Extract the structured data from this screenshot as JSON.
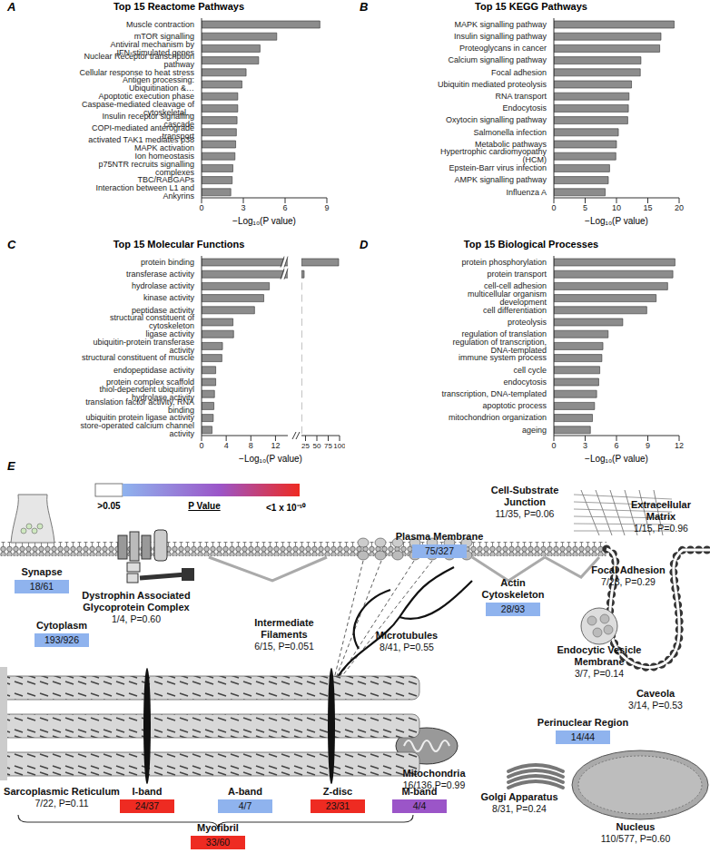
{
  "chart_data": [
    {
      "type": "bar",
      "panel": "A",
      "title": "Top 15 Reactome Pathways",
      "orientation": "horizontal",
      "color": "#8c8c8c",
      "categories": [
        "Muscle contraction",
        "mTOR signalling",
        "Antiviral mechanism by IFN-stimulated genes",
        "Nuclear Receptor transcription pathway",
        "Cellular response to heat stress",
        "Antigen processing: Ubiquitination &…",
        "Apoptotic execution  phase",
        "Caspase-mediated cleavage of cytoskeletal…",
        "Insulin receptor signalling cascade",
        "COPI-mediated anterograde transport",
        "activated TAK1 mediates p38 MAPK activation",
        "Ion homeostasis",
        "p75NTR recruits signalling complexes",
        "TBC/RABGAPs",
        "Interaction between L1 and Ankyrins"
      ],
      "values": [
        8.5,
        5.4,
        4.2,
        4.1,
        3.2,
        2.9,
        2.6,
        2.6,
        2.55,
        2.5,
        2.45,
        2.4,
        2.25,
        2.2,
        2.1
      ],
      "xlim": [
        0,
        9
      ],
      "xticks": [
        0,
        3,
        6,
        9
      ],
      "x_label": "−Log₁₀(P value)"
    },
    {
      "type": "bar",
      "panel": "B",
      "title": "Top 15 KEGG Pathways",
      "orientation": "horizontal",
      "color": "#8c8c8c",
      "categories": [
        "MAPK signalling pathway",
        "Insulin signalling pathway",
        "Proteoglycans in cancer",
        "Calcium signalling pathway",
        "Focal adhesion",
        "Ubiquitin mediated proteolysis",
        "RNA transport",
        "Endocytosis",
        "Oxytocin signalling pathway",
        "Salmonella infection",
        "Metabolic pathways",
        "Hypertrophic cardiomyopathy (HCM)",
        "Epstein-Barr virus infection",
        "AMPK signalling pathway",
        "Influenza A"
      ],
      "values": [
        19.2,
        17.1,
        16.9,
        13.9,
        13.8,
        12.4,
        12.0,
        11.9,
        11.8,
        10.3,
        10.0,
        9.9,
        8.9,
        8.7,
        8.2
      ],
      "xlim": [
        0,
        20
      ],
      "xticks": [
        0,
        5,
        10,
        15,
        20
      ],
      "x_label": "−Log₁₀(P value)"
    },
    {
      "type": "bar",
      "panel": "C",
      "title": "Top 15 Molecular Functions",
      "orientation": "horizontal",
      "color": "#8c8c8c",
      "categories": [
        "protein binding",
        "transferase activity",
        "hydrolase activity",
        "kinase activity",
        "peptidase activity",
        "structural constituent of cytoskeleton",
        "ligase activity",
        "ubiquitin-protein transferase activity",
        "structural constituent of muscle",
        "endopeptidase activity",
        "protein complex scaffold",
        "thiol-dependent ubiquitinyl hydrolase activity",
        "translation factor activity, RNA binding",
        "ubiquitin protein ligase activity",
        "store-operated calcium channel activity"
      ],
      "values": [
        98,
        22,
        11,
        10.1,
        8.6,
        5.1,
        5.2,
        3.4,
        3.3,
        2.3,
        2.3,
        2.1,
        2.0,
        1.9,
        1.7
      ],
      "xlim": [
        0,
        100
      ],
      "x_break": [
        14,
        16
      ],
      "xticks": [
        0,
        4,
        8,
        12,
        25,
        50,
        75,
        100
      ],
      "x_label": "−Log₁₀(P value)"
    },
    {
      "type": "bar",
      "panel": "D",
      "title": "Top 15 Biological Processes",
      "orientation": "horizontal",
      "color": "#8c8c8c",
      "categories": [
        "protein phosphorylation",
        "protein transport",
        "cell-cell adhesion",
        "multicellular organism development",
        "cell differentiation",
        "proteolysis",
        "regulation of translation",
        "regulation of transcription, DNA-templated",
        "immune system process",
        "cell cycle",
        "endocytosis",
        "transcription, DNA-templated",
        "apoptotic process",
        "mitochondrion organization",
        "ageing"
      ],
      "values": [
        11.6,
        11.4,
        10.9,
        9.8,
        8.9,
        6.6,
        5.2,
        4.7,
        4.6,
        4.4,
        4.3,
        4.1,
        3.9,
        3.7,
        3.5
      ],
      "xlim": [
        0,
        12
      ],
      "xticks": [
        0,
        3,
        6,
        9,
        12
      ],
      "x_label": "−Log₁₀(P value)"
    }
  ],
  "diagram": {
    "panel": "E",
    "legend": {
      "low": ">0.05",
      "title": "P Value",
      "high": "<1 x 10⁻¹⁰",
      "colors": [
        "#ffffff",
        "#8fb3ee",
        "#9b55c8",
        "#ee2b22"
      ]
    },
    "compartments": [
      {
        "label": "Synapse",
        "stats": "18/61",
        "color": "#8fb3ee"
      },
      {
        "label": "Dystrophin Associated Glycoprotein Complex",
        "stats": "1/4, P=0.60"
      },
      {
        "label": "Cytoplasm",
        "stats": "193/926",
        "color": "#8fb3ee"
      },
      {
        "label": "Plasma Membrane",
        "stats": "75/327",
        "color": "#8fb3ee"
      },
      {
        "label": "Cell-Substrate Junction",
        "stats": "11/35, P=0.06"
      },
      {
        "label": "Extracellular Matrix",
        "stats": "1/15, P=0.96"
      },
      {
        "label": "Actin Cytoskeleton",
        "stats": "28/93",
        "color": "#8fb3ee"
      },
      {
        "label": "Focal Adhesion",
        "stats": "7/28, P=0.29"
      },
      {
        "label": "Intermediate Filaments",
        "stats": "6/15, P=0.051"
      },
      {
        "label": "Microtubules",
        "stats": "8/41, P=0.55"
      },
      {
        "label": "Endocytic Vesicle Membrane",
        "stats": "3/7, P=0.14"
      },
      {
        "label": "Caveola",
        "stats": "3/14, P=0.53"
      },
      {
        "label": "Perinuclear Region",
        "stats": "14/44",
        "color": "#8fb3ee"
      },
      {
        "label": "Mitochondria",
        "stats": "16/136,P=0.99"
      },
      {
        "label": "Golgi Apparatus",
        "stats": "8/31, P=0.24"
      },
      {
        "label": "Nucleus",
        "stats": "110/577, P=0.60"
      },
      {
        "label": "Sarcoplasmic Reticulum",
        "stats": "7/22, P=0.11"
      },
      {
        "label": "I-band",
        "stats": "24/37",
        "color": "#ee2b22"
      },
      {
        "label": "A-band",
        "stats": "4/7",
        "color": "#8fb3ee"
      },
      {
        "label": "Z-disc",
        "stats": "23/31",
        "color": "#ee2b22"
      },
      {
        "label": "M-band",
        "stats": "4/4",
        "color": "#9b55c8"
      },
      {
        "label": "Myofibril",
        "stats": "33/60",
        "color": "#ee2b22"
      }
    ]
  }
}
